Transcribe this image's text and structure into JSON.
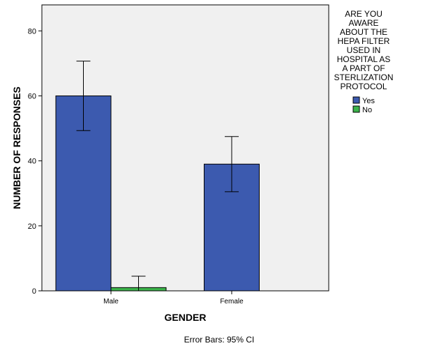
{
  "chart_data": {
    "type": "bar",
    "categories": [
      "Male",
      "Female"
    ],
    "series": [
      {
        "name": "Yes",
        "color": "#3c5aaf",
        "values": [
          60,
          39
        ],
        "ci_low": [
          49.3,
          30.5
        ],
        "ci_high": [
          70.7,
          47.5
        ]
      },
      {
        "name": "No",
        "color": "#3cb44b",
        "values": [
          1,
          0
        ],
        "ci_low": [
          0,
          null
        ],
        "ci_high": [
          4.5,
          null
        ]
      }
    ],
    "xlabel": "GENDER",
    "ylabel": "NUMBER OF RESPONSES",
    "ylim": [
      0,
      88
    ],
    "yticks": [
      0,
      20,
      40,
      60,
      80
    ],
    "legend": {
      "title_lines": [
        "ARE YOU",
        "AWARE",
        "ABOUT THE",
        "HEPA FILTER",
        "USED IN",
        "HOSPITAL AS",
        "A PART OF",
        "STERLIZATION",
        "PROTOCOL"
      ],
      "position": "right"
    },
    "footnote": "Error Bars: 95% CI",
    "plot_background": "#f0f0f0",
    "grid": false
  }
}
